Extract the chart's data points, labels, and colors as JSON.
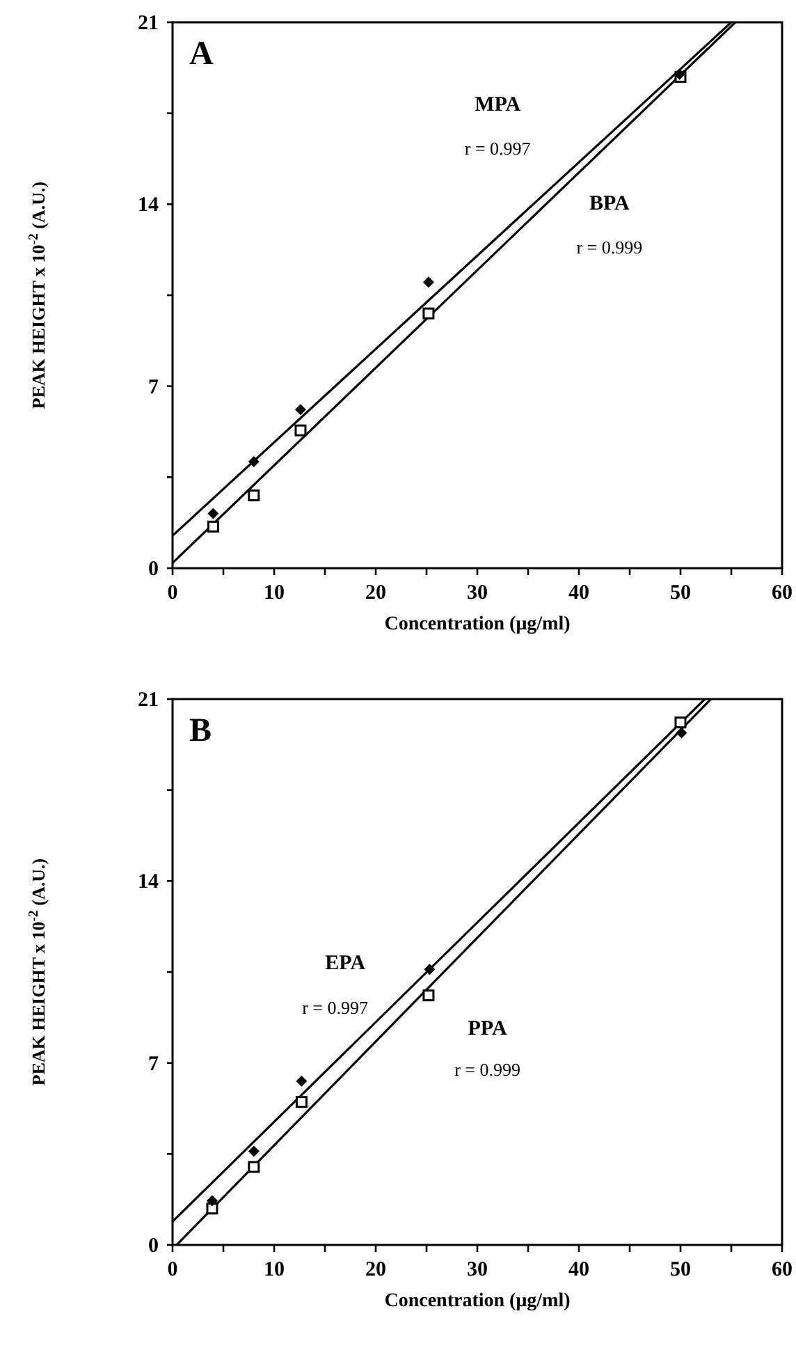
{
  "chart_data": [
    {
      "type": "scatter",
      "ylabel": "PEAK HEIGHT x 10$^{-2}$ (A.U.)",
      "xlabel": "Concentration  (μg/ml)",
      "xlim": [
        0,
        60
      ],
      "ylim": [
        0,
        21
      ],
      "xticks": [
        0,
        {
          "value": 5,
          "label": null
        },
        10,
        {
          "value": 15,
          "label": null
        },
        20,
        {
          "value": 25,
          "label": null
        },
        30,
        {
          "value": 35,
          "label": null
        },
        40,
        {
          "value": 45,
          "label": null
        },
        50,
        {
          "value": 55,
          "label": null
        },
        60
      ],
      "yticks": [
        0,
        {
          "value": 3.5,
          "label": null
        },
        7,
        {
          "value": 10.5,
          "label": null
        },
        14,
        {
          "value": 17.5,
          "label": null
        },
        21
      ],
      "grid": false,
      "annotations": [
        "A",
        "MPA",
        "r = 0.997",
        "BPA",
        "r = 0.999"
      ],
      "series": [
        {
          "type": "scatter",
          "marker": "diamond",
          "color": "#000000",
          "x": [
            4,
            8,
            12.6,
            25.2,
            49.9
          ],
          "values": [
            2.1,
            4.1,
            6.1,
            11.0,
            19.0
          ]
        },
        {
          "type": "scatter",
          "marker": "square",
          "color": "#000000",
          "x": [
            4,
            8,
            12.6,
            25.2,
            50
          ],
          "values": [
            1.6,
            2.8,
            5.3,
            9.8,
            18.9
          ]
        },
        {
          "type": "line",
          "marker": "none",
          "color": "#000000",
          "x": [
            0,
            55
          ],
          "values": [
            1.25,
            21
          ]
        },
        {
          "type": "line",
          "marker": "none",
          "color": "#000000",
          "x": [
            0,
            55.4
          ],
          "values": [
            0.2,
            21
          ]
        }
      ]
    },
    {
      "type": "scatter",
      "ylabel": "PEAK HEIGHT x 10$^{-2}$ (A.U.)",
      "xlabel": "Concentration  (μg/ml)",
      "xlim": [
        0,
        60
      ],
      "ylim": [
        0,
        21
      ],
      "xticks": [
        0,
        {
          "value": 5,
          "label": null
        },
        10,
        {
          "value": 15,
          "label": null
        },
        20,
        {
          "value": 25,
          "label": null
        },
        30,
        {
          "value": 35,
          "label": null
        },
        40,
        {
          "value": 45,
          "label": null
        },
        50,
        {
          "value": 55,
          "label": null
        },
        60
      ],
      "yticks": [
        0,
        {
          "value": 3.5,
          "label": null
        },
        7,
        {
          "value": 10.5,
          "label": null
        },
        14,
        {
          "value": 17.5,
          "label": null
        },
        21
      ],
      "grid": false,
      "annotations": [
        "B",
        "EPA",
        "r = 0.997",
        "PPA",
        "r = 0.999"
      ],
      "series": [
        {
          "type": "scatter",
          "marker": "diamond",
          "color": "#000000",
          "x": [
            3.9,
            8,
            12.7,
            25.3,
            50.1
          ],
          "values": [
            1.7,
            3.6,
            6.3,
            10.6,
            19.7
          ]
        },
        {
          "type": "scatter",
          "marker": "square",
          "color": "#000000",
          "x": [
            3.9,
            8,
            12.7,
            25.2,
            50
          ],
          "values": [
            1.4,
            3.0,
            5.5,
            9.6,
            20.1
          ]
        },
        {
          "type": "line",
          "marker": "none",
          "color": "#000000",
          "x": [
            0,
            52.4
          ],
          "values": [
            0.9,
            21
          ]
        },
        {
          "type": "line",
          "marker": "none",
          "color": "#000000",
          "x": [
            0.4,
            53
          ],
          "values": [
            0,
            21
          ]
        }
      ]
    }
  ]
}
